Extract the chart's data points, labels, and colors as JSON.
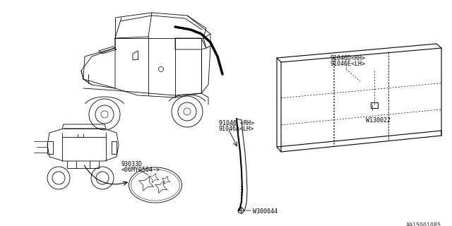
{
  "bg_color": "#ffffff",
  "line_color": "#000000",
  "fig_width": 6.4,
  "fig_height": 3.2,
  "dpi": 100,
  "watermark": "A915001085",
  "label_91046D": "91046D<RH>",
  "label_91046E": "91046E<LH>",
  "label_91046": "91046 <RH>",
  "label_91046A": "91046A<LH>",
  "label_93033D": "93033D",
  "label_06MY": "<06MY0504->",
  "label_W130022": "W130022",
  "label_W300044": "W300044"
}
